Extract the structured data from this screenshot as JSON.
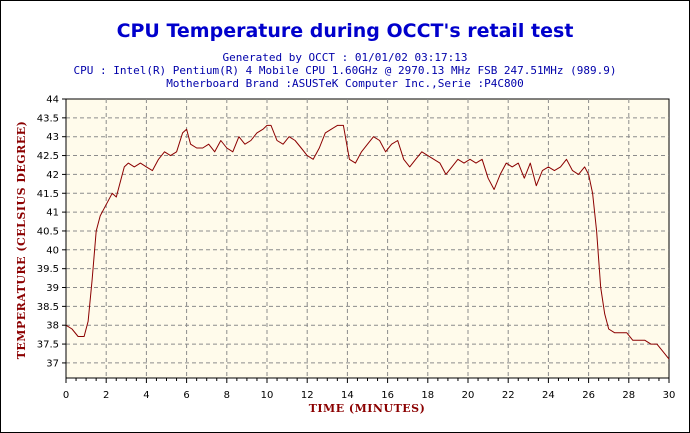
{
  "chart_data": {
    "type": "line",
    "title": "CPU Temperature during OCCT's retail test",
    "subtitles": [
      "Generated by OCCT : 01/01/02 03:17:13",
      "CPU : Intel(R) Pentium(R) 4 Mobile CPU 1.60GHz @ 2970.13 MHz FSB 247.51MHz (989.9)",
      "Motherboard Brand :ASUSTeK Computer Inc.,Serie :P4C800"
    ],
    "xlabel": "TIME (MINUTES)",
    "ylabel": "TEMPERATURE (CELSIUS DEGREE)",
    "xlim": [
      0,
      30
    ],
    "ylim": [
      36.6,
      44
    ],
    "x_ticks": [
      0,
      2,
      4,
      6,
      8,
      10,
      12,
      14,
      16,
      18,
      20,
      22,
      24,
      26,
      28,
      30
    ],
    "y_ticks": [
      37,
      37.5,
      38,
      38.5,
      39,
      39.5,
      40,
      40.5,
      41,
      41.5,
      42,
      42.5,
      43,
      43.5,
      44
    ],
    "grid": true,
    "colors": {
      "line": "#8b0000",
      "plot_bg": "#fffbeb",
      "grid": "#8c8c8c",
      "title": "#0000cc",
      "axis_title": "#8b0000"
    },
    "series": [
      {
        "x": [
          0,
          0.3,
          0.6,
          0.9,
          1.1,
          1.3,
          1.5,
          1.7,
          1.9,
          2.1,
          2.3,
          2.5,
          2.7,
          2.9,
          3.1,
          3.4,
          3.7,
          4.0,
          4.3,
          4.6,
          4.9,
          5.2,
          5.5,
          5.8,
          6.0,
          6.2,
          6.5,
          6.8,
          7.1,
          7.4,
          7.7,
          8.0,
          8.3,
          8.6,
          8.9,
          9.2,
          9.5,
          9.8,
          10.0,
          10.2,
          10.5,
          10.8,
          11.1,
          11.4,
          11.7,
          12.0,
          12.3,
          12.6,
          12.9,
          13.2,
          13.5,
          13.8,
          14.1,
          14.4,
          14.7,
          15.0,
          15.3,
          15.6,
          15.9,
          16.2,
          16.5,
          16.8,
          17.1,
          17.4,
          17.7,
          18.0,
          18.3,
          18.6,
          18.9,
          19.2,
          19.5,
          19.8,
          20.1,
          20.4,
          20.7,
          21.0,
          21.3,
          21.6,
          21.9,
          22.2,
          22.5,
          22.8,
          23.1,
          23.4,
          23.7,
          24.0,
          24.3,
          24.6,
          24.9,
          25.2,
          25.5,
          25.8,
          26.0,
          26.2,
          26.4,
          26.6,
          26.8,
          27.0,
          27.3,
          27.6,
          27.9,
          28.2,
          28.5,
          28.8,
          29.1,
          29.4,
          29.7,
          30.0
        ],
        "y": [
          38.0,
          37.9,
          37.7,
          37.7,
          38.1,
          39.2,
          40.5,
          40.9,
          41.1,
          41.3,
          41.5,
          41.4,
          41.8,
          42.2,
          42.3,
          42.2,
          42.3,
          42.2,
          42.1,
          42.4,
          42.6,
          42.5,
          42.6,
          43.1,
          43.2,
          42.8,
          42.7,
          42.7,
          42.8,
          42.6,
          42.9,
          42.7,
          42.6,
          43.0,
          42.8,
          42.9,
          43.1,
          43.2,
          43.3,
          43.3,
          42.9,
          42.8,
          43.0,
          42.9,
          42.7,
          42.5,
          42.4,
          42.7,
          43.1,
          43.2,
          43.3,
          43.3,
          42.4,
          42.3,
          42.6,
          42.8,
          43.0,
          42.9,
          42.6,
          42.8,
          42.9,
          42.4,
          42.2,
          42.4,
          42.6,
          42.5,
          42.4,
          42.3,
          42.0,
          42.2,
          42.4,
          42.3,
          42.4,
          42.3,
          42.4,
          41.9,
          41.6,
          42.0,
          42.3,
          42.2,
          42.3,
          41.9,
          42.3,
          41.7,
          42.1,
          42.2,
          42.1,
          42.2,
          42.4,
          42.1,
          42.0,
          42.2,
          42.0,
          41.5,
          40.5,
          39.0,
          38.3,
          37.9,
          37.8,
          37.8,
          37.8,
          37.6,
          37.6,
          37.6,
          37.5,
          37.5,
          37.3,
          37.1
        ]
      }
    ]
  }
}
